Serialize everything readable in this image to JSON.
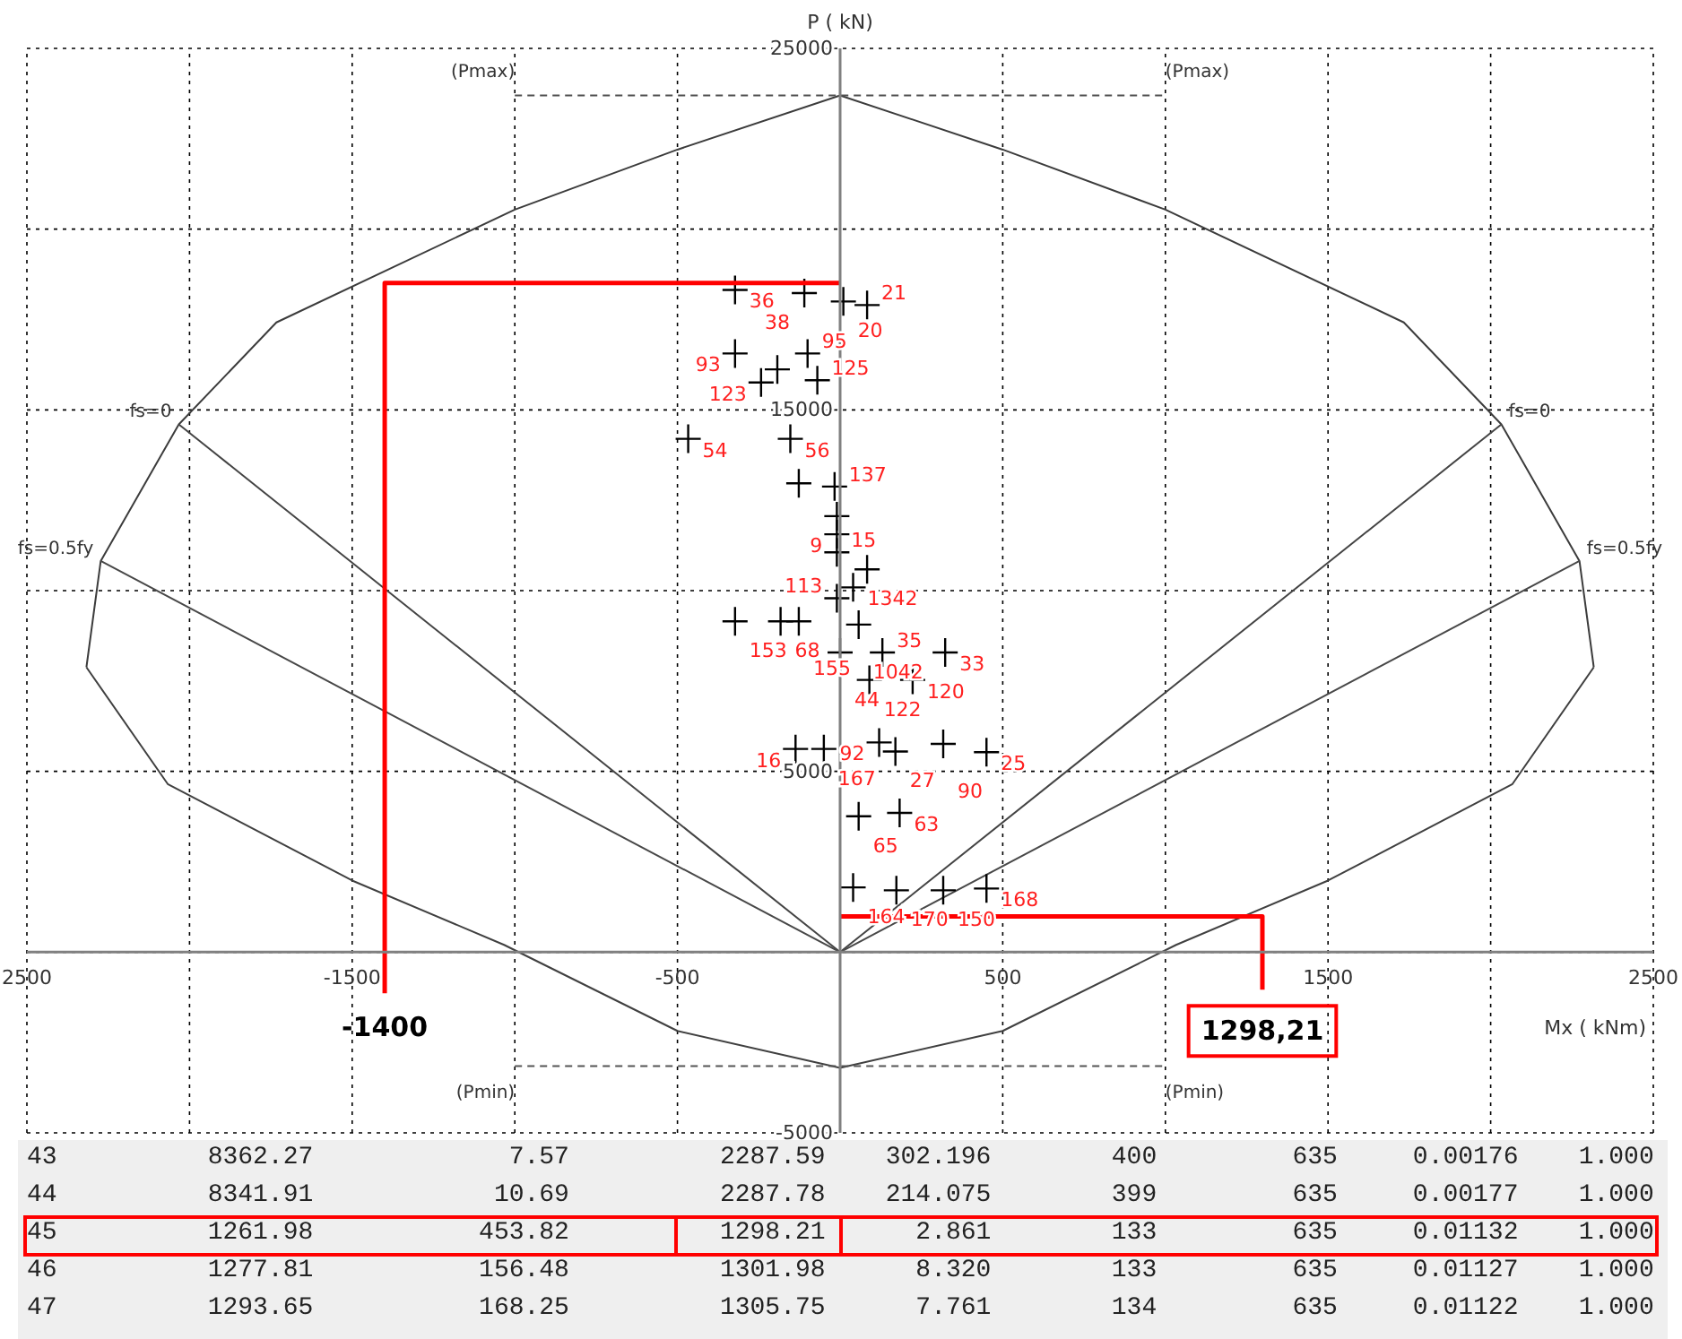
{
  "chart_data": [
    {
      "type": "scatter",
      "xlabel": "Mx ( kNm)",
      "ylabel": "P ( kN)",
      "xlim": [
        -2500,
        2500
      ],
      "ylim": [
        -5000,
        25000
      ],
      "xticks": [
        {
          "value": -2500,
          "label": "2500"
        },
        {
          "value": -2000,
          "label": null
        },
        -1500,
        {
          "value": -1000,
          "label": null
        },
        -500,
        {
          "value": 0,
          "label": null
        },
        500,
        {
          "value": 1000,
          "label": null
        },
        1500,
        {
          "value": 2000,
          "label": null
        },
        2500
      ],
      "yticks": [
        -5000,
        {
          "value": 0,
          "label": null
        },
        5000,
        {
          "value": 10000,
          "label": null
        },
        15000,
        {
          "value": 20000,
          "label": null
        },
        25000
      ],
      "grid": true,
      "series": [
        {
          "type": "line",
          "color": "#3c3c3c",
          "x": [
            -2317,
            -2273,
            -2033,
            -1733,
            -1000,
            -500,
            0,
            500,
            1000,
            1733,
            2033,
            2273,
            2317
          ],
          "values": [
            7880,
            10820,
            14600,
            17420,
            20540,
            22200,
            23700,
            22200,
            20540,
            17420,
            14600,
            10820,
            7880
          ]
        },
        {
          "type": "line",
          "color": "#404040",
          "x": [
            -2317,
            -2067,
            -1500,
            -1033,
            -500,
            0,
            500,
            1033,
            1500,
            2067,
            2317
          ],
          "values": [
            7880,
            4650,
            1980,
            200,
            -2180,
            -3200,
            -2180,
            200,
            1980,
            4650,
            7880
          ]
        },
        {
          "type": "line",
          "color": "#444444",
          "x": [
            -2033,
            0,
            2033
          ],
          "values": [
            14600,
            0,
            14600
          ]
        },
        {
          "type": "line",
          "color": "#484848",
          "x": [
            -2273,
            0,
            2273
          ],
          "values": [
            10820,
            0,
            10820
          ]
        },
        {
          "type": "line",
          "color": "#505050",
          "line_style": "dashed",
          "x": [
            -1000,
            1000
          ],
          "values": [
            23700,
            23700
          ]
        },
        {
          "type": "line",
          "color": "#545454",
          "line_style": "dashed",
          "x": [
            -1000,
            1000
          ],
          "values": [
            -3150,
            -3150
          ]
        },
        {
          "type": "scatter",
          "color": "#000000",
          "marker": "cross",
          "x": [
            -323,
            -110,
            10,
            83,
            -323,
            -100,
            -193,
            -243,
            -70,
            -467,
            -153,
            -127,
            -17,
            -10,
            -10,
            -10,
            83,
            40,
            -10,
            -323,
            -183,
            -127,
            57,
            0,
            130,
            323,
            90,
            223,
            -137,
            -50,
            120,
            170,
            317,
            450,
            57,
            183,
            40,
            173,
            317,
            450
          ],
          "values": [
            18320,
            18230,
            18000,
            17900,
            16560,
            16560,
            16120,
            15760,
            15820,
            14200,
            14200,
            12970,
            12880,
            12060,
            11560,
            11060,
            10590,
            10090,
            9790,
            9150,
            9150,
            9150,
            9060,
            8290,
            8290,
            8290,
            7530,
            7530,
            5620,
            5620,
            5800,
            5550,
            5760,
            5530,
            3760,
            3850,
            1790,
            1710,
            1710,
            1760
          ]
        },
        {
          "type": "line",
          "color": "#ff0000",
          "x": [
            -1400,
            -1400,
            0,
            null,
            0,
            1298.21,
            1298.21
          ],
          "values": [
            -1140,
            18510,
            18510,
            null,
            990,
            990,
            -1040
          ]
        }
      ],
      "annotations": [
        {
          "text": "(Pmax)",
          "x": -1000,
          "y": 23700
        },
        {
          "text": "(Pmax)",
          "x": 1000,
          "y": 23700
        },
        {
          "text": "(Pmin)",
          "x": -1000,
          "y": -3150
        },
        {
          "text": "(Pmin)",
          "x": 1000,
          "y": -3150
        },
        {
          "text": "fs=0",
          "x": -2033,
          "y": 14600
        },
        {
          "text": "fs=0",
          "x": 2033,
          "y": 14600
        },
        {
          "text": "fs=0.5fy",
          "x": -2273,
          "y": 10820
        },
        {
          "text": "fs=0.5fy",
          "x": 2273,
          "y": 10820
        },
        {
          "text": "-1400",
          "x": -1400,
          "y": -1140
        },
        {
          "text": "1298,21",
          "x": 1298.21,
          "y": -1040
        },
        {
          "text": "36",
          "x": -323,
          "y": 18320
        },
        {
          "text": "38",
          "x": -110,
          "y": 18230
        },
        {
          "text": "20",
          "x": 10,
          "y": 18000
        },
        {
          "text": "21",
          "x": 83,
          "y": 17900
        },
        {
          "text": "93",
          "x": -323,
          "y": 16560
        },
        {
          "text": "95",
          "x": -100,
          "y": 16560
        },
        {
          "text": "123",
          "x": -243,
          "y": 15760
        },
        {
          "text": "125",
          "x": -70,
          "y": 15820
        },
        {
          "text": "54",
          "x": -467,
          "y": 14200
        },
        {
          "text": "56",
          "x": -153,
          "y": 14200
        },
        {
          "text": "137",
          "x": -17,
          "y": 12880
        },
        {
          "text": "9",
          "x": -10,
          "y": 11560
        },
        {
          "text": "15",
          "x": -10,
          "y": 11060
        },
        {
          "text": "1342",
          "x": 40,
          "y": 10090
        },
        {
          "text": "113",
          "x": -10,
          "y": 9790
        },
        {
          "text": "153",
          "x": -323,
          "y": 9150
        },
        {
          "text": "68",
          "x": -183,
          "y": 9150
        },
        {
          "text": "155",
          "x": -127,
          "y": 9150
        },
        {
          "text": "1042",
          "x": 57,
          "y": 9060
        },
        {
          "text": "44",
          "x": 0,
          "y": 8290
        },
        {
          "text": "35",
          "x": 130,
          "y": 8290
        },
        {
          "text": "33",
          "x": 323,
          "y": 8290
        },
        {
          "text": "122",
          "x": 90,
          "y": 7530
        },
        {
          "text": "120",
          "x": 223,
          "y": 7530
        },
        {
          "text": "16",
          "x": -137,
          "y": 5620
        },
        {
          "text": "167",
          "x": -50,
          "y": 5620
        },
        {
          "text": "92",
          "x": 120,
          "y": 5800
        },
        {
          "text": "27",
          "x": 170,
          "y": 5550
        },
        {
          "text": "90",
          "x": 317,
          "y": 5760
        },
        {
          "text": "25",
          "x": 450,
          "y": 5530
        },
        {
          "text": "65",
          "x": 57,
          "y": 3760
        },
        {
          "text": "63",
          "x": 183,
          "y": 3850
        },
        {
          "text": "164",
          "x": 40,
          "y": 1790
        },
        {
          "text": "170",
          "x": 173,
          "y": 1710
        },
        {
          "text": "150",
          "x": 317,
          "y": 1710
        },
        {
          "text": "168",
          "x": 450,
          "y": 1760
        }
      ]
    },
    {
      "type": "other",
      "annotations": [
        "43",
        "8362.27",
        "7.57",
        "2287.59",
        "302.196",
        "400",
        "635",
        "0.00176",
        "1.000",
        "44",
        "8341.91",
        "10.69",
        "2287.78",
        "214.075",
        "399",
        "635",
        "0.00177",
        "1.000",
        "45",
        "1261.98",
        "453.82",
        "1298.21",
        "2.861",
        "133",
        "635",
        "0.01132",
        "1.000",
        "46",
        "1277.81",
        "156.48",
        "1301.98",
        "8.320",
        "133",
        "635",
        "0.01127",
        "1.000",
        "47",
        "1293.65",
        "168.25",
        "1305.75",
        "7.761",
        "134",
        "635",
        "0.01122",
        "1.000"
      ]
    }
  ]
}
